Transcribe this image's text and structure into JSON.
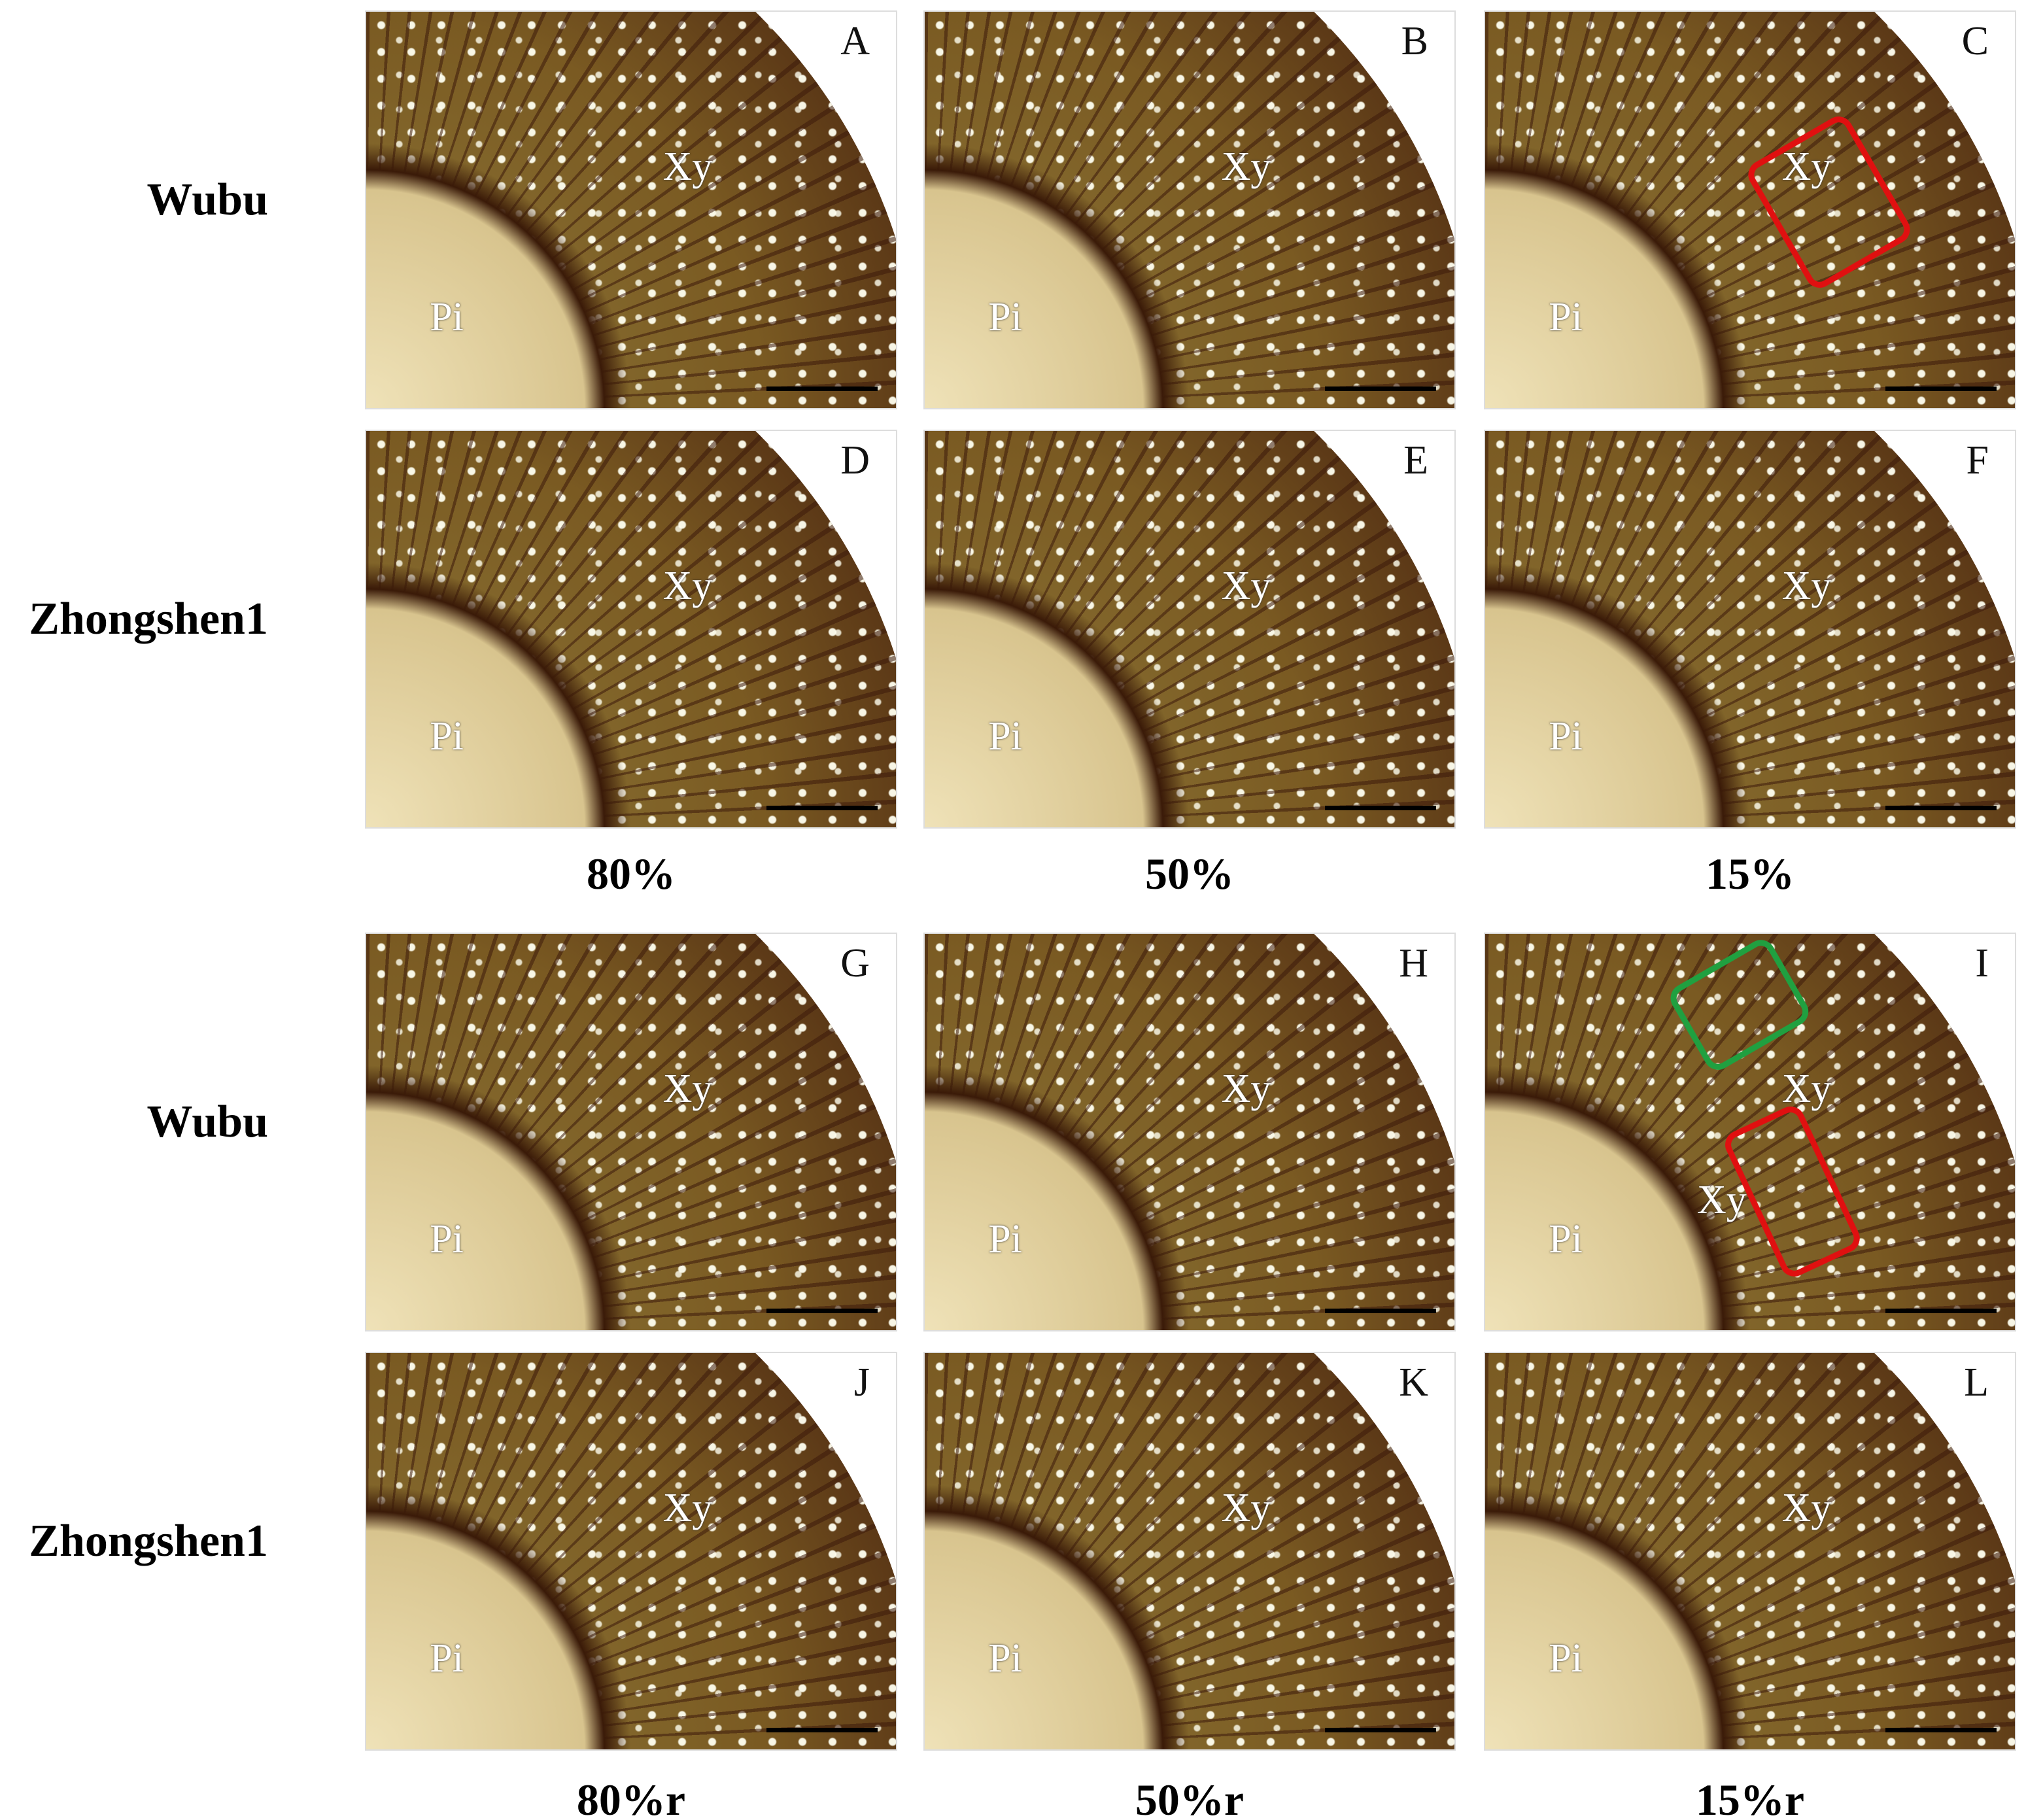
{
  "groups": [
    {
      "rows": [
        {
          "label": "Wubu",
          "panels": [
            {
              "letter": "A",
              "labels": [
                "Xy",
                "Pi"
              ]
            },
            {
              "letter": "B",
              "labels": [
                "Xy",
                "Pi"
              ]
            },
            {
              "letter": "C",
              "labels": [
                "Xy",
                "Pi"
              ]
            }
          ]
        },
        {
          "label": "Zhongshen1",
          "panels": [
            {
              "letter": "D",
              "labels": [
                "Xy",
                "Pi"
              ]
            },
            {
              "letter": "E",
              "labels": [
                "Xy",
                "Pi"
              ]
            },
            {
              "letter": "F",
              "labels": [
                "Xy",
                "Pi"
              ]
            }
          ]
        }
      ],
      "columns": [
        "80%",
        "50%",
        "15%"
      ]
    },
    {
      "rows": [
        {
          "label": "Wubu",
          "panels": [
            {
              "letter": "G",
              "labels": [
                "Xy",
                "Pi"
              ]
            },
            {
              "letter": "H",
              "labels": [
                "Xy",
                "Pi"
              ]
            },
            {
              "letter": "I",
              "labels": [
                "Xy",
                "Xy",
                "Pi"
              ]
            }
          ]
        },
        {
          "label": "Zhongshen1",
          "panels": [
            {
              "letter": "J",
              "labels": [
                "Xy",
                "Pi"
              ]
            },
            {
              "letter": "K",
              "labels": [
                "Xy",
                "Pi"
              ]
            },
            {
              "letter": "L",
              "labels": [
                "Xy",
                "Pi"
              ]
            }
          ]
        }
      ],
      "columns": [
        "80%r",
        "50%r",
        "15%r"
      ]
    }
  ]
}
